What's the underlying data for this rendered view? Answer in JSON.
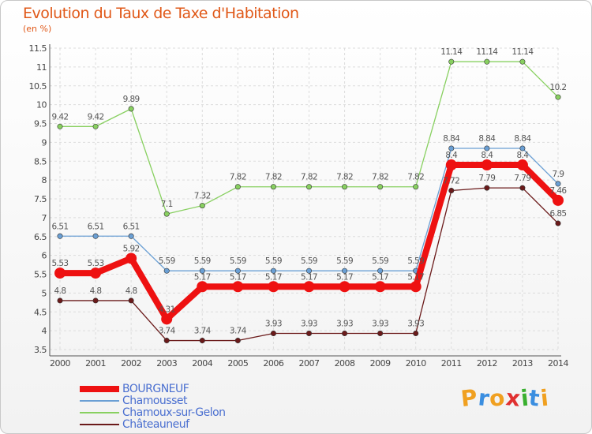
{
  "title": "Evolution du Taux de Taxe d'Habitation",
  "subtitle": "(en %)",
  "logo_text": "Proxiti",
  "chart_data": {
    "type": "line",
    "title": "Evolution du Taux de Taxe d'Habitation",
    "ylabel": "(en %)",
    "xlabel": "",
    "ylim": [
      3.5,
      11.5
    ],
    "y_ticks": [
      "3.5",
      "4",
      "4.5",
      "5",
      "5.5",
      "6",
      "6.5",
      "7",
      "7.5",
      "8",
      "8.5",
      "9",
      "9.5",
      "10",
      "10.5",
      "11",
      "11.5"
    ],
    "categories": [
      "2000",
      "2001",
      "2002",
      "2003",
      "2004",
      "2005",
      "2006",
      "2007",
      "2008",
      "2009",
      "2010",
      "2011",
      "2012",
      "2013",
      "2014"
    ],
    "grid": true,
    "legend_position": "bottom-left",
    "series": [
      {
        "name": "Châteauneuf",
        "color": "#6b1a1a",
        "values": [
          4.8,
          4.8,
          4.8,
          3.74,
          3.74,
          3.74,
          3.93,
          3.93,
          3.93,
          3.93,
          3.93,
          7.72,
          7.79,
          7.79,
          6.85
        ],
        "labels": [
          "4.8",
          "4.8",
          "4.8",
          "3.74",
          "3.74",
          "3.74",
          "3.93",
          "3.93",
          "3.93",
          "3.93",
          "3.93",
          "7.72",
          "7.79",
          "7.79",
          "6.85"
        ]
      },
      {
        "name": "Chamoux-sur-Gelon",
        "color": "#88d060",
        "values": [
          9.42,
          9.42,
          9.89,
          7.1,
          7.32,
          7.82,
          7.82,
          7.82,
          7.82,
          7.82,
          7.82,
          11.14,
          11.14,
          11.14,
          10.2
        ],
        "labels": [
          "9.42",
          "9.42",
          "9.89",
          "7.1",
          "7.32",
          "7.82",
          "7.82",
          "7.82",
          "7.82",
          "7.82",
          "7.82",
          "11.14",
          "11.14",
          "11.14",
          "10.2"
        ]
      },
      {
        "name": "Chamousset",
        "color": "#6a9fd4",
        "values": [
          6.51,
          6.51,
          6.51,
          5.59,
          5.59,
          5.59,
          5.59,
          5.59,
          5.59,
          5.59,
          5.59,
          8.84,
          8.84,
          8.84,
          7.9
        ],
        "labels": [
          "6.51",
          "6.51",
          "6.51",
          "5.59",
          "5.59",
          "5.59",
          "5.59",
          "5.59",
          "5.59",
          "5.59",
          "5.59",
          "8.84",
          "8.84",
          "8.84",
          "7.9"
        ]
      },
      {
        "name": "BOURGNEUF",
        "color": "#ee1111",
        "values": [
          5.53,
          5.53,
          5.92,
          4.31,
          5.17,
          5.17,
          5.17,
          5.17,
          5.17,
          5.17,
          5.17,
          8.4,
          8.4,
          8.4,
          7.46
        ],
        "labels": [
          "5.53",
          "5.53",
          "5.92",
          "4.31",
          "5.17",
          "5.17",
          "5.17",
          "5.17",
          "5.17",
          "5.17",
          "5.17",
          "8.4",
          "8.4",
          "8.4",
          "7.46"
        ]
      }
    ]
  },
  "legend": [
    {
      "label": "BOURGNEUF",
      "color": "#ee1111",
      "width": 8
    },
    {
      "label": "Chamousset",
      "color": "#6a9fd4",
      "width": 2
    },
    {
      "label": "Chamoux-sur-Gelon",
      "color": "#88d060",
      "width": 2
    },
    {
      "label": "Châteauneuf",
      "color": "#6b1a1a",
      "width": 2
    }
  ],
  "logo_colors": [
    "#f0a020",
    "#3a8ee0",
    "#f0a020",
    "#e03030",
    "#3ab030",
    "#3a8ee0",
    "#f0a020"
  ]
}
